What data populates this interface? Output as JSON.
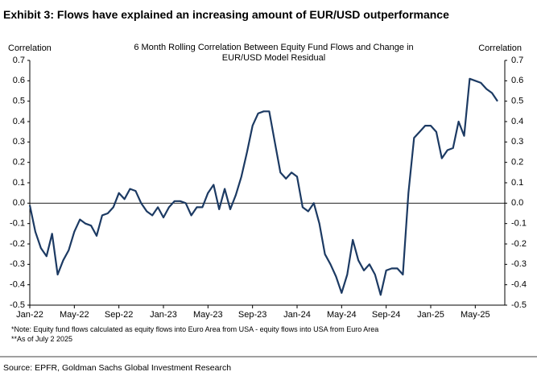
{
  "chart_data": {
    "type": "line",
    "exhibit_title": "Exhibit 3: Flows have explained an increasing amount of EUR/USD outperformance",
    "title": "6 Month Rolling Correlation Between Equity Fund Flows and Change in EUR/USD Model Residual",
    "y_label": "Correlation",
    "y2_label": "Correlation",
    "categories": [
      "Jan-22",
      null,
      null,
      null,
      null,
      null,
      null,
      null,
      "May-22",
      null,
      null,
      null,
      null,
      null,
      null,
      null,
      "Sep-22",
      null,
      null,
      null,
      null,
      null,
      null,
      null,
      "Jan-23",
      null,
      null,
      null,
      null,
      null,
      null,
      null,
      "May-23",
      null,
      null,
      null,
      null,
      null,
      null,
      null,
      "Sep-23",
      null,
      null,
      null,
      null,
      null,
      null,
      null,
      "Jan-24",
      null,
      null,
      null,
      null,
      null,
      null,
      null,
      "May-24",
      null,
      null,
      null,
      null,
      null,
      null,
      null,
      "Sep-24",
      null,
      null,
      null,
      null,
      null,
      null,
      null,
      "Jan-25",
      null,
      null,
      null,
      null,
      null,
      null,
      null,
      "May-25",
      null,
      null,
      null,
      null
    ],
    "series": [
      {
        "name": "6 Month Rolling Correlation",
        "color": "#1c3a63",
        "values": [
          -0.01,
          -0.14,
          -0.22,
          -0.26,
          -0.15,
          -0.35,
          -0.28,
          -0.23,
          -0.14,
          -0.08,
          -0.1,
          -0.11,
          -0.16,
          -0.06,
          -0.05,
          -0.02,
          0.05,
          0.02,
          0.07,
          0.06,
          0.0,
          -0.04,
          -0.06,
          -0.02,
          -0.07,
          -0.02,
          0.01,
          0.01,
          0.0,
          -0.06,
          -0.02,
          -0.02,
          0.05,
          0.09,
          -0.03,
          0.07,
          -0.03,
          0.04,
          0.13,
          0.25,
          0.38,
          0.44,
          0.45,
          0.45,
          0.3,
          0.15,
          0.12,
          0.15,
          0.13,
          -0.02,
          -0.04,
          0.0,
          -0.1,
          -0.25,
          -0.3,
          -0.36,
          -0.44,
          -0.35,
          -0.18,
          -0.28,
          -0.33,
          -0.3,
          -0.35,
          -0.45,
          -0.33,
          -0.32,
          -0.32,
          -0.35,
          0.05,
          0.32,
          0.35,
          0.38,
          0.38,
          0.35,
          0.22,
          0.26,
          0.27,
          0.4,
          0.33,
          0.61,
          0.6,
          0.59,
          0.56,
          0.54,
          0.5
        ]
      }
    ],
    "ylim": [
      -0.5,
      0.7
    ],
    "yticks": [
      -0.5,
      -0.4,
      -0.3,
      -0.2,
      -0.1,
      {
        "value": 0,
        "label": "0.0"
      },
      0.1,
      0.2,
      0.3,
      0.4,
      0.5,
      0.6,
      0.7
    ],
    "y2lim": [
      -0.5,
      0.7
    ],
    "y2ticks": [
      -0.5,
      -0.4,
      -0.3,
      -0.2,
      -0.1,
      {
        "value": 0,
        "label": "0.0"
      },
      0.1,
      0.2,
      0.3,
      0.4,
      0.5,
      0.6,
      0.7
    ],
    "notes": [
      "*Note: Equity fund flows calculated as equity flows into Euro Area from USA - equity flows into USA from Euro Area",
      "**As of July 2 2025"
    ],
    "source": "Source: EPFR, Goldman Sachs Global Investment Research"
  }
}
